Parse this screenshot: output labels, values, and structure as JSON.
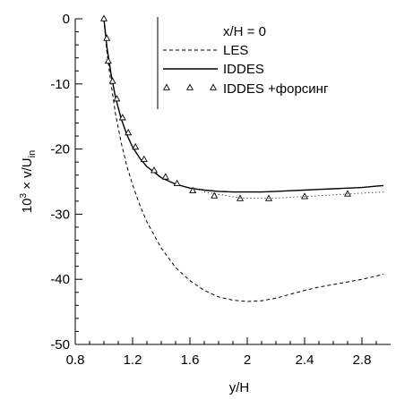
{
  "chart_data": {
    "type": "line",
    "xlabel": "y/H",
    "ylabel": {
      "prefix": "10",
      "exp": "3",
      "mid": " × ",
      "var": "v",
      "div": "/U",
      "sub": "in"
    },
    "xlim": [
      0.8,
      3.0
    ],
    "ylim": [
      -50,
      0
    ],
    "xticks": [
      0.8,
      1.2,
      1.6,
      2.0,
      2.4,
      2.8
    ],
    "xtick_labels": [
      "0.8",
      "1.2",
      "1.6",
      "2",
      "2.4",
      "2.8"
    ],
    "yticks": [
      0,
      -10,
      -20,
      -30,
      -40,
      -50
    ],
    "ytick_labels": [
      "0",
      "-10",
      "-20",
      "-30",
      "-40",
      "-50"
    ],
    "legend": {
      "title": "x/H = 0",
      "position": "top-right"
    },
    "series": [
      {
        "name": "LES",
        "style": "dashed",
        "x": [
          1.0,
          1.02,
          1.05,
          1.08,
          1.12,
          1.16,
          1.2,
          1.25,
          1.3,
          1.4,
          1.5,
          1.6,
          1.7,
          1.8,
          1.9,
          2.0,
          2.1,
          2.2,
          2.3,
          2.4,
          2.5,
          2.6,
          2.7,
          2.8,
          2.9,
          2.95
        ],
        "values": [
          0,
          -5,
          -10,
          -14.5,
          -19,
          -22.6,
          -25.5,
          -28.6,
          -31.2,
          -35.2,
          -38.2,
          -40.2,
          -41.7,
          -42.7,
          -43.2,
          -43.4,
          -43.3,
          -42.9,
          -42.3,
          -41.7,
          -41.2,
          -40.8,
          -40.4,
          -40.0,
          -39.5,
          -39.2
        ]
      },
      {
        "name": "IDDES",
        "style": "solid",
        "x": [
          1.0,
          1.02,
          1.05,
          1.08,
          1.12,
          1.16,
          1.2,
          1.25,
          1.3,
          1.4,
          1.5,
          1.6,
          1.7,
          1.8,
          1.9,
          2.0,
          2.1,
          2.2,
          2.3,
          2.4,
          2.5,
          2.6,
          2.7,
          2.8,
          2.9,
          2.95
        ],
        "values": [
          0,
          -4.2,
          -8.5,
          -12,
          -15.3,
          -17.8,
          -19.7,
          -21.4,
          -22.7,
          -24.4,
          -25.4,
          -26.0,
          -26.3,
          -26.5,
          -26.6,
          -26.6,
          -26.6,
          -26.5,
          -26.4,
          -26.3,
          -26.2,
          -26.1,
          -26.0,
          -25.9,
          -25.7,
          -25.6
        ]
      },
      {
        "name": "IDDES +форсинг",
        "style": "markers",
        "x": [
          1.0,
          1.02,
          1.03,
          1.06,
          1.09,
          1.13,
          1.17,
          1.22,
          1.28,
          1.35,
          1.43,
          1.51,
          1.62,
          1.77,
          1.95,
          2.15,
          2.4,
          2.7
        ],
        "values": [
          0,
          -3,
          -6.5,
          -9.6,
          -12.3,
          -15.2,
          -17.5,
          -19.7,
          -21.6,
          -23.3,
          -24.3,
          -25.3,
          -26.4,
          -27.2,
          -27.6,
          -27.6,
          -27.3,
          -26.9
        ]
      },
      {
        "name": "IDDES +форсинг (dotted)",
        "style": "dotted",
        "x": [
          1.7,
          1.95,
          2.15,
          2.4,
          2.7,
          2.95
        ],
        "values": [
          -26.6,
          -27.5,
          -27.6,
          -27.3,
          -26.9,
          -26.6
        ]
      }
    ]
  }
}
